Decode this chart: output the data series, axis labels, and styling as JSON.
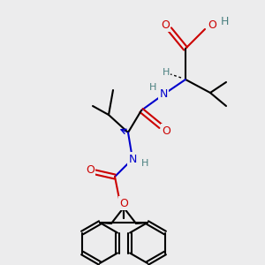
{
  "bg_color": [
    0.925,
    0.925,
    0.93,
    1.0
  ],
  "atom_colors": {
    "C": "#000000",
    "O": "#cc0000",
    "N": "#0000cc",
    "H": "#4a8080"
  },
  "bond_width": 1.5,
  "font_size": 9
}
